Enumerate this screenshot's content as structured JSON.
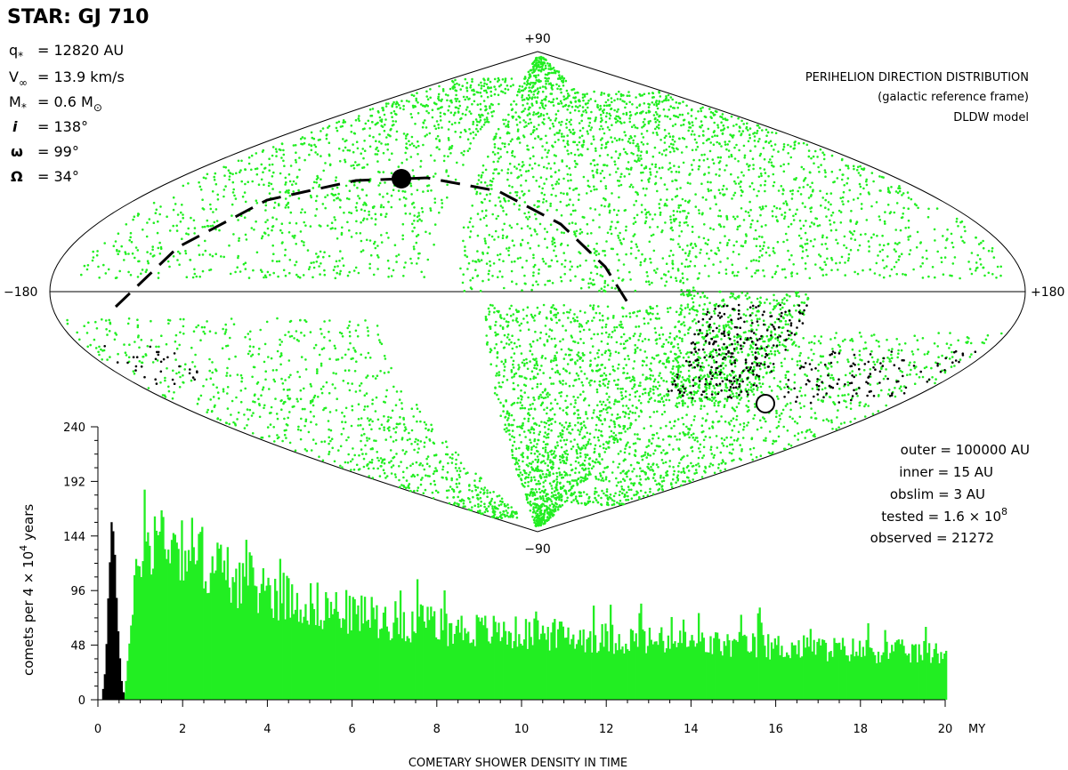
{
  "header": {
    "title": "STAR: GJ 710"
  },
  "params": [
    {
      "sym": "q",
      "sub": "*",
      "val": "= 12820 AU"
    },
    {
      "sym": "V",
      "sub": "∞",
      "val": "= 13.9 km/s"
    },
    {
      "sym": "M",
      "sub": "*",
      "val": "= 0.6 M",
      "tail": "⊙"
    },
    {
      "sym": "i",
      "sub": "",
      "val": "= 138°"
    },
    {
      "sym": "ω",
      "sub": "",
      "val": "=  99°"
    },
    {
      "sym": "Ω",
      "sub": "",
      "val": "=  34°"
    }
  ],
  "map_title": {
    "line1": "PERIHELION DIRECTION DISTRIBUTION",
    "line2": "(galactic reference frame)",
    "line3": "DLDW model"
  },
  "map_labels": {
    "top": "+90",
    "bottom": "−90",
    "left": "−180",
    "right": "+180"
  },
  "stats": {
    "outer": "outer = 100000 AU",
    "inner": "inner = 15 AU",
    "obslim": "obslim = 3 AU",
    "tested_a": "tested = 1.6 × 10",
    "tested_exp": "8",
    "observed": "observed = 21272"
  },
  "colors": {
    "green": "#22ee22",
    "black": "#000000"
  },
  "chart_data": [
    {
      "type": "scatter",
      "title": "PERIHELION DIRECTION DISTRIBUTION (galactic reference frame) DLDW model",
      "projection": "sinusoidal",
      "xlim": [
        -180,
        180
      ],
      "ylim": [
        -90,
        90
      ],
      "clusters": [
        {
          "name": "upper-left band",
          "lon": [
            -170,
            -40
          ],
          "lat": [
            5,
            80
          ],
          "count": 1100,
          "color": "green"
        },
        {
          "name": "central upper",
          "lon": [
            -30,
            60
          ],
          "lat": [
            0,
            88
          ],
          "count": 1200,
          "color": "green"
        },
        {
          "name": "central lower",
          "lon": [
            -20,
            55
          ],
          "lat": [
            -88,
            -5
          ],
          "count": 1500,
          "color": "green"
        },
        {
          "name": "right upper band",
          "lon": [
            60,
            175
          ],
          "lat": [
            5,
            75
          ],
          "count": 1100,
          "color": "green"
        },
        {
          "name": "right lower band",
          "lon": [
            60,
            178
          ],
          "lat": [
            -80,
            -15
          ],
          "count": 1000,
          "color": "green"
        },
        {
          "name": "left lower band",
          "lon": [
            -178,
            -60
          ],
          "lat": [
            -85,
            -10
          ],
          "count": 900,
          "color": "green"
        },
        {
          "name": "dense right cluster",
          "lon": [
            52,
            100
          ],
          "lat": [
            -42,
            0
          ],
          "count": 600,
          "color": "green"
        },
        {
          "name": "black cluster",
          "lon": [
            60,
            100
          ],
          "lat": [
            -40,
            -5
          ],
          "count": 260,
          "color": "black"
        },
        {
          "name": "black trail",
          "lon": [
            110,
            175
          ],
          "lat": [
            -42,
            -22
          ],
          "count": 110,
          "color": "black"
        },
        {
          "name": "black left",
          "lon": [
            -175,
            -145
          ],
          "lat": [
            -35,
            -20
          ],
          "count": 30,
          "color": "black"
        }
      ],
      "apex_marker": {
        "lon": -60,
        "lat": 43,
        "symbol": "filled-circle"
      },
      "antapex_marker": {
        "lon": 120,
        "lat": -43,
        "symbol": "open-circle"
      },
      "trajectory": "dashed great circle through apex"
    },
    {
      "type": "bar",
      "title": "COMETARY SHOWER DENSITY IN TIME",
      "xlabel": "MY",
      "ylabel": "comets per 4 × 10⁴ years",
      "ylabel_parts": {
        "a": "comets per 4 × 10",
        "exp": "4",
        "b": " years"
      },
      "xlim": [
        0,
        20
      ],
      "ylim": [
        0,
        240
      ],
      "xticks": [
        0,
        2,
        4,
        6,
        8,
        10,
        12,
        14,
        16,
        18,
        20
      ],
      "yticks": [
        0,
        48,
        96,
        144,
        192,
        240
      ],
      "bin_width_my": 0.04,
      "series": [
        {
          "name": "black (early shower)",
          "color": "black",
          "x_range": [
            0.1,
            0.6
          ],
          "peak": {
            "x": 0.35,
            "y": 163
          }
        },
        {
          "name": "green",
          "color": "green",
          "x_range": [
            0.6,
            20
          ],
          "profile_x": [
            0.6,
            1.0,
            1.5,
            2.0,
            2.5,
            3.0,
            4.0,
            5.0,
            6.0,
            8.0,
            10.0,
            12.0,
            14.0,
            16.0,
            18.0,
            20.0
          ],
          "profile_y": [
            0,
            140,
            152,
            140,
            127,
            115,
            100,
            87,
            78,
            66,
            60,
            56,
            51,
            48,
            45,
            42
          ]
        }
      ]
    }
  ]
}
